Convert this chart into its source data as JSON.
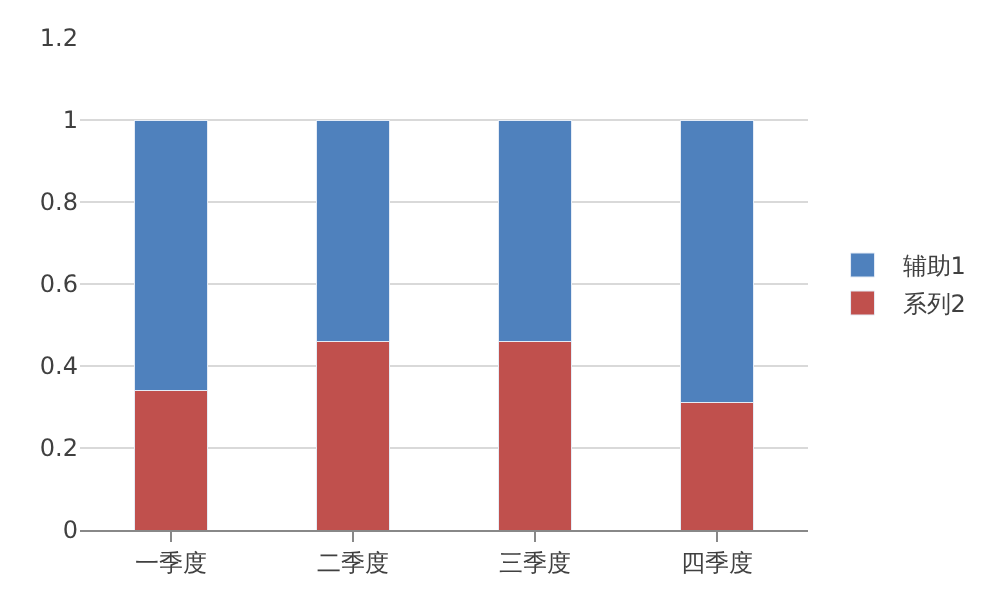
{
  "chart_data": {
    "type": "bar",
    "stacked": true,
    "categories": [
      "一季度",
      "二季度",
      "三季度",
      "四季度"
    ],
    "series": [
      {
        "name": "系列2",
        "color": "#c0504d",
        "values": [
          0.34,
          0.46,
          0.46,
          0.31
        ]
      },
      {
        "name": "辅助1",
        "color": "#4f81bd",
        "values": [
          0.66,
          0.54,
          0.54,
          0.69
        ]
      }
    ],
    "ylim": [
      0,
      1.2
    ],
    "yticks": [
      0,
      0.2,
      0.4,
      0.6,
      0.8,
      1,
      1.2
    ],
    "grid": "y",
    "legend": "right"
  }
}
